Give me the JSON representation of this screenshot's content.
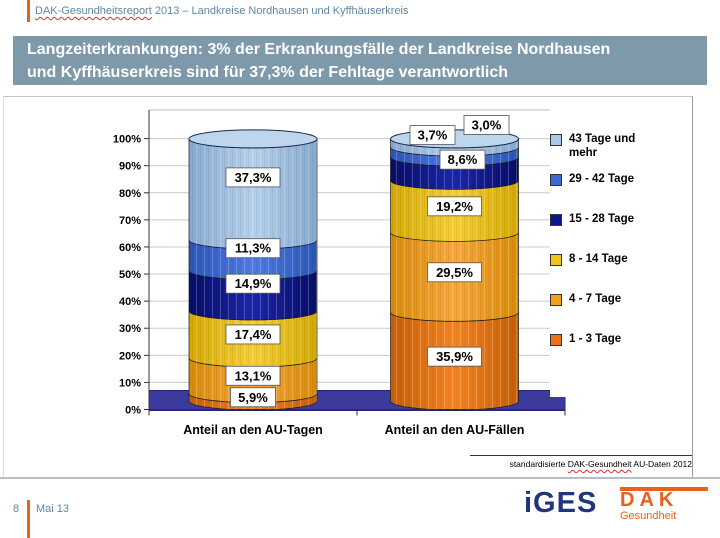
{
  "header": {
    "spellchecked": "DAK-Gesundheitsreport",
    "rest": " 2013 – Landkreise Nordhausen und Kyffhäuserkreis"
  },
  "title": {
    "line1": "Langzeiterkrankungen: 3% der Erkrankungsfälle der Landkreise Nordhausen",
    "line2": "und Kyffhäuserkreis sind für 37,3% der Fehltage verantwortlich"
  },
  "chart_data": {
    "type": "bar",
    "subtype": "3d-stacked-cylinder",
    "title": "",
    "xlabel": "",
    "ylabel": "",
    "categories": [
      "Anteil an den AU-Tagen",
      "Anteil an den AU-Fällen"
    ],
    "series": [
      {
        "name": "1 - 3 Tage",
        "color": "#EE7119",
        "grad": [
          "#C55E05",
          "#F5831F"
        ],
        "values": [
          5.9,
          35.9
        ],
        "labels": [
          "5,9%",
          "35,9%"
        ]
      },
      {
        "name": "4 - 7 Tage",
        "color": "#F59E1E",
        "grad": [
          "#D88A06",
          "#F9A637"
        ],
        "values": [
          13.1,
          29.5
        ],
        "labels": [
          "13,1%",
          "29,5%"
        ]
      },
      {
        "name": "8 - 14 Tage",
        "color": "#F2C41B",
        "grad": [
          "#D4A800",
          "#F6CD2E"
        ],
        "values": [
          17.4,
          19.2
        ],
        "labels": [
          "17,4%",
          "19,2%"
        ]
      },
      {
        "name": "15 - 28 Tage",
        "color": "#0B1592",
        "grad": [
          "#060D66",
          "#1B25AC"
        ],
        "values": [
          14.9,
          8.6
        ],
        "labels": [
          "14,9%",
          "8,6%"
        ]
      },
      {
        "name": "29 - 42 Tage",
        "color": "#3A6AD8",
        "grad": [
          "#2A55B8",
          "#4E7BE4"
        ],
        "values": [
          11.3,
          3.7
        ],
        "labels": [
          "11,3%",
          "3,7%"
        ]
      },
      {
        "name": "43 Tage und mehr",
        "color": "#A9C9E8",
        "grad": [
          "#86A9D2",
          "#B4CFEA"
        ],
        "values": [
          37.3,
          3.0
        ],
        "labels": [
          "37,3%",
          "3,0%"
        ]
      }
    ],
    "ylim": [
      0,
      100
    ],
    "ytick_step": 10,
    "ytick_suffix": "%",
    "grid": true,
    "legend_position": "right",
    "cap_color": "#BDD6EE",
    "floor_color": "#3B3B9E",
    "label_offsets": {
      "0": {
        "3": [
          0,
          -7
        ],
        "4": [
          0,
          -7
        ],
        "5": [
          0,
          -12
        ]
      },
      "1": {
        "3": [
          8,
          -9
        ],
        "4": [
          -22,
          -17
        ],
        "5": [
          32,
          -18
        ]
      }
    }
  },
  "footnote": {
    "pre": "standardisierte",
    "spellchecked": "DAK-Gesundheit",
    "post": "AU-Daten 2012"
  },
  "footer": {
    "page_number": "8",
    "date": "Mai 13"
  },
  "logos": {
    "iges": "iGES",
    "dak": "DAK",
    "dak_sub": "Gesundheit"
  },
  "colors": {
    "title_bg": "#7E99AA",
    "accent_orange": "#E8621C",
    "header_text": "#5F87A2",
    "iges_blue": "#21357E",
    "gridline": "#C9C9C9",
    "axis": "#333333"
  }
}
